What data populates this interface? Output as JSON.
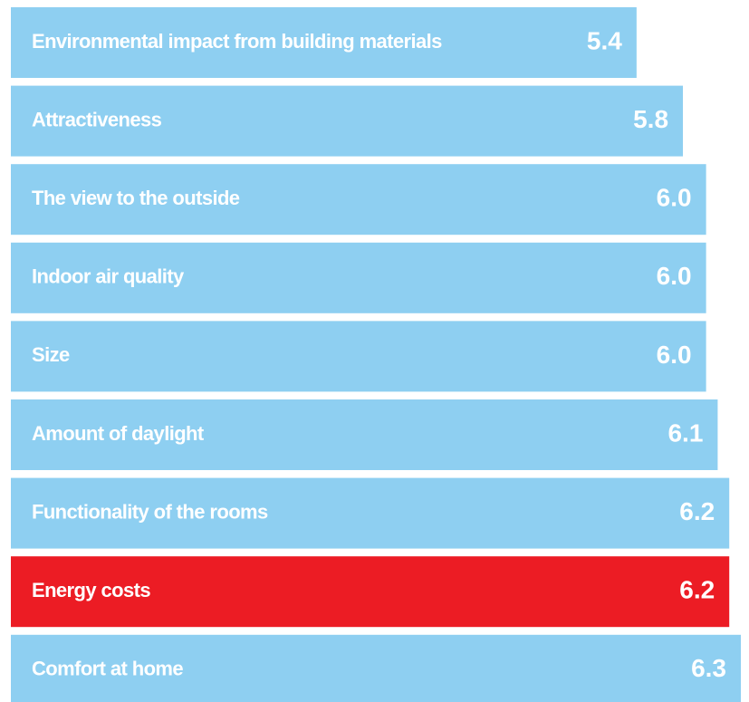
{
  "chart_data": {
    "type": "barh",
    "categories": [
      "Environmental impact from building materials",
      "Attractiveness",
      "The view to the outside",
      "Indoor air quality",
      "Size",
      "Amount of daylight",
      "Functionality of the rooms",
      "Energy costs",
      "Comfort at home"
    ],
    "values": [
      5.4,
      5.8,
      6.0,
      6.0,
      6.0,
      6.1,
      6.2,
      6.2,
      6.3
    ],
    "value_labels": [
      "5.4",
      "5.8",
      "6.0",
      "6.0",
      "6.0",
      "6.1",
      "6.2",
      "6.2",
      "6.3"
    ],
    "colors": [
      "#8ecff1",
      "#8ecff1",
      "#8ecff1",
      "#8ecff1",
      "#8ecff1",
      "#8ecff1",
      "#8ecff1",
      "#ec1c24",
      "#8ecff1"
    ]
  }
}
